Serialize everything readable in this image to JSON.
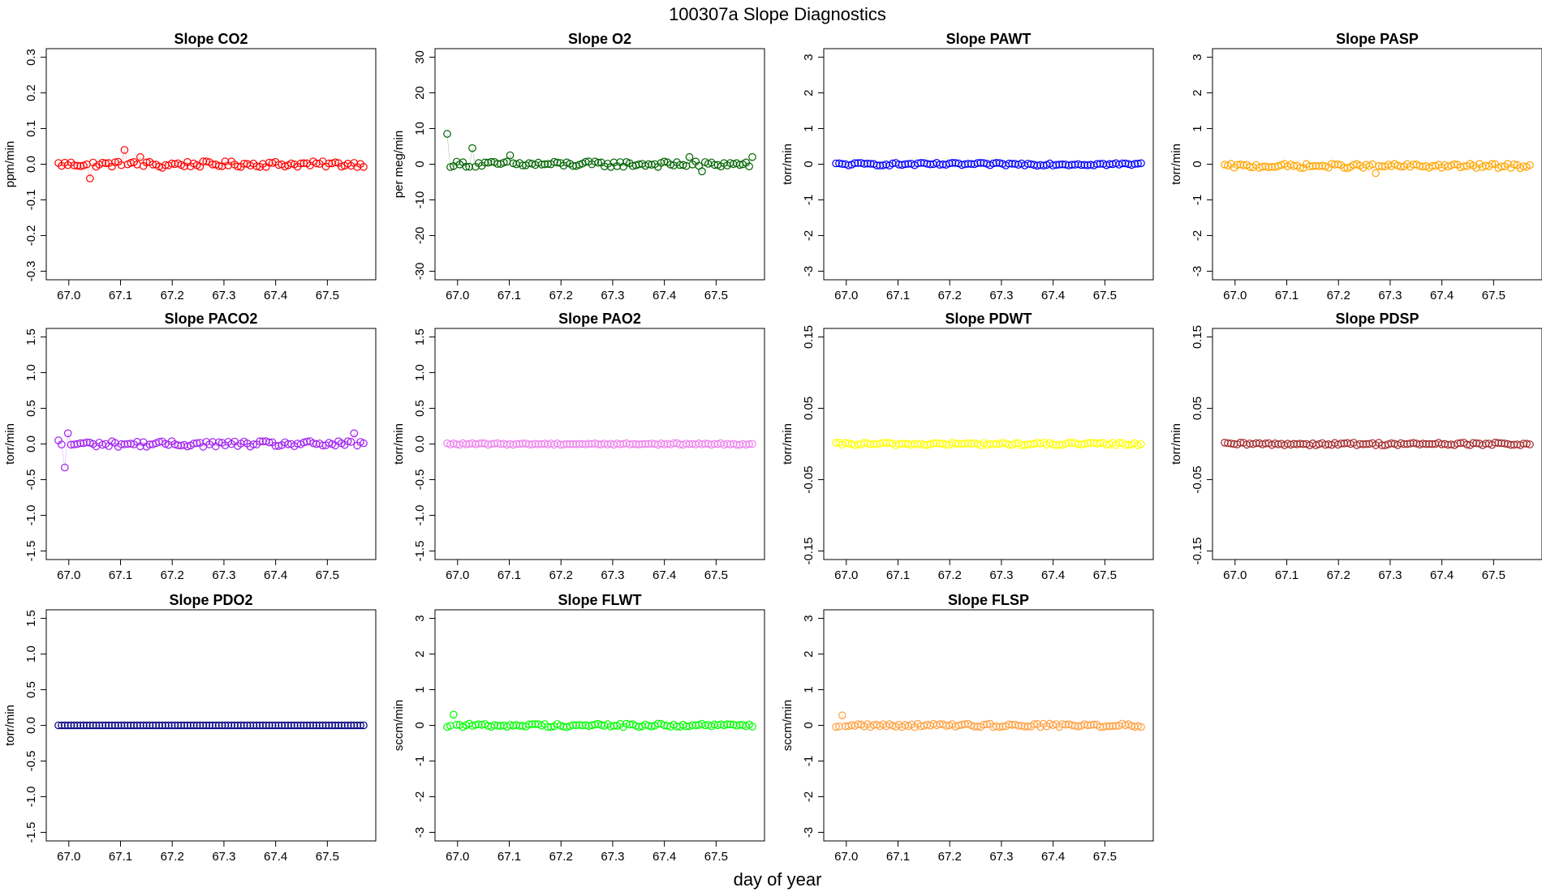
{
  "suptitle": "100307a   Slope Diagnostics",
  "xlabel": "day of year",
  "x_range": [
    66.98,
    67.57
  ],
  "x_ticks": [
    "67.0",
    "67.1",
    "67.2",
    "67.3",
    "67.4",
    "67.5"
  ],
  "chart_data": [
    {
      "type": "scatter",
      "title": "Slope CO2",
      "ylabel": "ppm/min",
      "color": "#ff0000",
      "ylim": [
        -0.3,
        0.3
      ],
      "yticks": [
        "-0.3",
        "-0.2",
        "-0.1",
        "0.0",
        "0.1",
        "0.2",
        "0.3"
      ],
      "x_range": [
        66.98,
        67.57
      ],
      "n_points": 98,
      "baseline": 0.0,
      "noise": 0.008,
      "outliers": [
        {
          "x": 67.04,
          "y": -0.04
        },
        {
          "x": 67.11,
          "y": 0.04
        },
        {
          "x": 67.14,
          "y": 0.02
        },
        {
          "x": 67.18,
          "y": -0.01
        }
      ]
    },
    {
      "type": "scatter",
      "title": "Slope O2",
      "ylabel": "per meg/min",
      "color": "#006400",
      "ylim": [
        -30,
        30
      ],
      "yticks": [
        "-30",
        "-20",
        "-10",
        "0",
        "10",
        "20",
        "30"
      ],
      "x_range": [
        66.98,
        67.57
      ],
      "n_points": 98,
      "baseline": 0.0,
      "noise": 0.8,
      "outliers": [
        {
          "x": 66.98,
          "y": 8.5
        },
        {
          "x": 67.03,
          "y": 4.5
        },
        {
          "x": 67.1,
          "y": 2.5
        },
        {
          "x": 67.45,
          "y": 2.0
        },
        {
          "x": 67.47,
          "y": -2.0
        },
        {
          "x": 67.57,
          "y": 2.0
        }
      ]
    },
    {
      "type": "scatter",
      "title": "Slope PAWT",
      "ylabel": "torr/min",
      "color": "#0000ff",
      "ylim": [
        -3,
        3
      ],
      "yticks": [
        "-3",
        "-2",
        "-1",
        "0",
        "1",
        "2",
        "3"
      ],
      "x_range": [
        66.98,
        67.57
      ],
      "n_points": 98,
      "baseline": 0.0,
      "noise": 0.04,
      "outliers": []
    },
    {
      "type": "scatter",
      "title": "Slope PASP",
      "ylabel": "torr/min",
      "color": "#ffa500",
      "ylim": [
        -3,
        3
      ],
      "yticks": [
        "-3",
        "-2",
        "-1",
        "0",
        "1",
        "2",
        "3"
      ],
      "x_range": [
        66.98,
        67.57
      ],
      "n_points": 98,
      "baseline": -0.05,
      "noise": 0.06,
      "outliers": [
        {
          "x": 67.27,
          "y": -0.25
        }
      ]
    },
    {
      "type": "scatter",
      "title": "Slope PACO2",
      "ylabel": "torr/min",
      "color": "#a020f0",
      "ylim": [
        -1.5,
        1.5
      ],
      "yticks": [
        "-1.5",
        "-1.0",
        "-0.5",
        "0.0",
        "0.5",
        "1.0",
        "1.5"
      ],
      "x_range": [
        66.98,
        67.57
      ],
      "n_points": 98,
      "baseline": 0.0,
      "noise": 0.04,
      "outliers": [
        {
          "x": 66.98,
          "y": 0.05
        },
        {
          "x": 66.99,
          "y": -0.33
        },
        {
          "x": 67.0,
          "y": 0.15
        },
        {
          "x": 67.55,
          "y": 0.15
        }
      ]
    },
    {
      "type": "scatter",
      "title": "Slope PAO2",
      "ylabel": "torr/min",
      "color": "#ee82ee",
      "ylim": [
        -1.5,
        1.5
      ],
      "yticks": [
        "-1.5",
        "-1.0",
        "-0.5",
        "0.0",
        "0.5",
        "1.0",
        "1.5"
      ],
      "x_range": [
        66.98,
        67.57
      ],
      "n_points": 98,
      "baseline": 0.0,
      "noise": 0.012,
      "outliers": []
    },
    {
      "type": "scatter",
      "title": "Slope PDWT",
      "ylabel": "torr/min",
      "color": "#ffff00",
      "ylim": [
        -0.15,
        0.15
      ],
      "yticks": [
        "-0.15",
        "-0.05",
        "0.05",
        "0.15"
      ],
      "x_range": [
        66.98,
        67.57
      ],
      "n_points": 98,
      "baseline": 0.0,
      "noise": 0.002,
      "outliers": []
    },
    {
      "type": "scatter",
      "title": "Slope PDSP",
      "ylabel": "torr/min",
      "color": "#a52a2a",
      "ylim": [
        -0.15,
        0.15
      ],
      "yticks": [
        "-0.15",
        "-0.05",
        "0.05",
        "0.15"
      ],
      "x_range": [
        66.98,
        67.57
      ],
      "n_points": 98,
      "baseline": 0.0,
      "noise": 0.002,
      "outliers": []
    },
    {
      "type": "scatter",
      "title": "Slope PDO2",
      "ylabel": "torr/min",
      "color": "#000080",
      "ylim": [
        -1.5,
        1.5
      ],
      "yticks": [
        "-1.5",
        "-1.0",
        "-0.5",
        "0.0",
        "0.5",
        "1.0",
        "1.5"
      ],
      "x_range": [
        66.98,
        67.57
      ],
      "n_points": 98,
      "baseline": 0.0,
      "noise": 0.0,
      "outliers": []
    },
    {
      "type": "scatter",
      "title": "Slope FLWT",
      "ylabel": "sccm/min",
      "color": "#00ff00",
      "ylim": [
        -3,
        3
      ],
      "yticks": [
        "-3",
        "-2",
        "-1",
        "0",
        "1",
        "2",
        "3"
      ],
      "x_range": [
        66.98,
        67.57
      ],
      "n_points": 98,
      "baseline": 0.0,
      "noise": 0.05,
      "outliers": [
        {
          "x": 66.99,
          "y": 0.3
        }
      ]
    },
    {
      "type": "scatter",
      "title": "Slope FLSP",
      "ylabel": "sccm/min",
      "color": "#ffa040",
      "ylim": [
        -3,
        3
      ],
      "yticks": [
        "-3",
        "-2",
        "-1",
        "0",
        "1",
        "2",
        "3"
      ],
      "x_range": [
        66.98,
        67.57
      ],
      "n_points": 98,
      "baseline": 0.0,
      "noise": 0.05,
      "outliers": [
        {
          "x": 66.99,
          "y": 0.28
        }
      ]
    }
  ]
}
